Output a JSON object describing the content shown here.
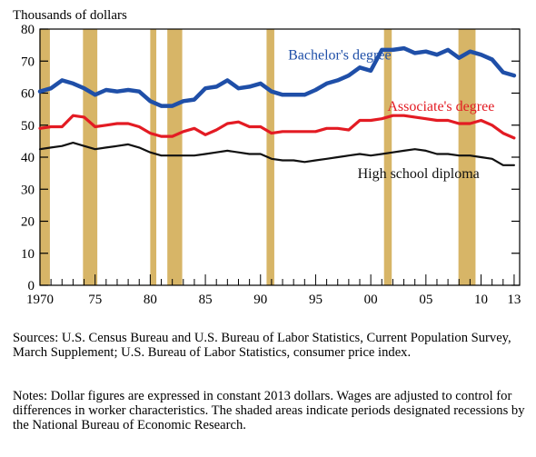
{
  "chart_data": {
    "type": "line",
    "ylabel": "Thousands of dollars",
    "ylim": [
      0,
      80
    ],
    "yticks": [
      0,
      10,
      20,
      30,
      40,
      50,
      60,
      70,
      80
    ],
    "xlim": [
      1970,
      2013.5
    ],
    "xticks": [
      1970,
      1975,
      1980,
      1985,
      1990,
      1995,
      2000,
      2005,
      2010,
      2013
    ],
    "xtick_labels": [
      "1970",
      "75",
      "80",
      "85",
      "90",
      "95",
      "00",
      "05",
      "10",
      "13"
    ],
    "grid": false,
    "x": [
      1970,
      1971,
      1972,
      1973,
      1974,
      1975,
      1976,
      1977,
      1978,
      1979,
      1980,
      1981,
      1982,
      1983,
      1984,
      1985,
      1986,
      1987,
      1988,
      1989,
      1990,
      1991,
      1992,
      1993,
      1994,
      1995,
      1996,
      1997,
      1998,
      1999,
      2000,
      2001,
      2002,
      2003,
      2004,
      2005,
      2006,
      2007,
      2008,
      2009,
      2010,
      2011,
      2012,
      2013
    ],
    "series": [
      {
        "name": "Bachelor's degree",
        "color": "#1f4fa8",
        "values": [
          60.5,
          61.5,
          64,
          63,
          61.5,
          59.5,
          61,
          60.5,
          61,
          60.5,
          57.5,
          56,
          56,
          57.5,
          58,
          61.5,
          62,
          64,
          61.5,
          62,
          63,
          60.5,
          59.5,
          59.5,
          59.5,
          61,
          63,
          64,
          65.5,
          68,
          67,
          73.5,
          73.5,
          74,
          72.5,
          73,
          72,
          73.5,
          71,
          73,
          72,
          70.5,
          66.5,
          65.5
        ]
      },
      {
        "name": "Associate's degree",
        "color": "#e31b23",
        "values": [
          49,
          49.5,
          49.5,
          53,
          52.5,
          49.5,
          50,
          50.5,
          50.5,
          49.5,
          47.5,
          46.5,
          46.5,
          48,
          49,
          47,
          48.5,
          50.5,
          51,
          49.5,
          49.5,
          47.5,
          48,
          48,
          48,
          48,
          49,
          49,
          48.5,
          51.5,
          51.5,
          52,
          53,
          53,
          52.5,
          52,
          51.5,
          51.5,
          50.5,
          50.5,
          51.5,
          50,
          47.5,
          46
        ]
      },
      {
        "name": "High school diploma",
        "color": "#111111",
        "values": [
          42.5,
          43,
          43.5,
          44.5,
          43.5,
          42.5,
          43,
          43.5,
          44,
          43,
          41.5,
          40.5,
          40.5,
          40.5,
          40.5,
          41,
          41.5,
          42,
          41.5,
          41,
          41,
          39.5,
          39,
          39,
          38.5,
          39,
          39.5,
          40,
          40.5,
          41,
          40.5,
          41,
          41.5,
          42,
          42.5,
          42,
          41,
          41,
          40.5,
          40.5,
          40,
          39.5,
          37.5,
          37.5
        ]
      }
    ],
    "recessions": [
      [
        1969.95,
        1970.9
      ],
      [
        1973.9,
        1975.2
      ],
      [
        1980.0,
        1980.55
      ],
      [
        1981.55,
        1982.9
      ],
      [
        1990.55,
        1991.25
      ],
      [
        2001.2,
        2001.9
      ],
      [
        2007.95,
        2009.5
      ]
    ],
    "recession_color": "#d7b567",
    "annotations": [
      {
        "series": 0,
        "text": "Bachelor's degree",
        "x": 1992.5,
        "y": 70.5,
        "color": "#1f4fa8"
      },
      {
        "series": 1,
        "text": "Associate's degree",
        "x": 2001.5,
        "y": 54.5,
        "color": "#e31b23"
      },
      {
        "series": 2,
        "text": "High school diploma",
        "x": 1998.8,
        "y": 33.5,
        "color": "#111111"
      }
    ]
  },
  "notes": {
    "sources": "Sources: U.S. Census Bureau and U.S. Bureau of Labor Statistics, Current Population Survey, March Supplement; U.S. Bureau of Labor Statistics, consumer price index.",
    "notes": "Notes: Dollar figures are expressed in constant 2013 dollars. Wages are adjusted to control for differences in worker characteristics. The shaded areas indicate periods designated recessions by the National Bureau of Economic Research."
  }
}
